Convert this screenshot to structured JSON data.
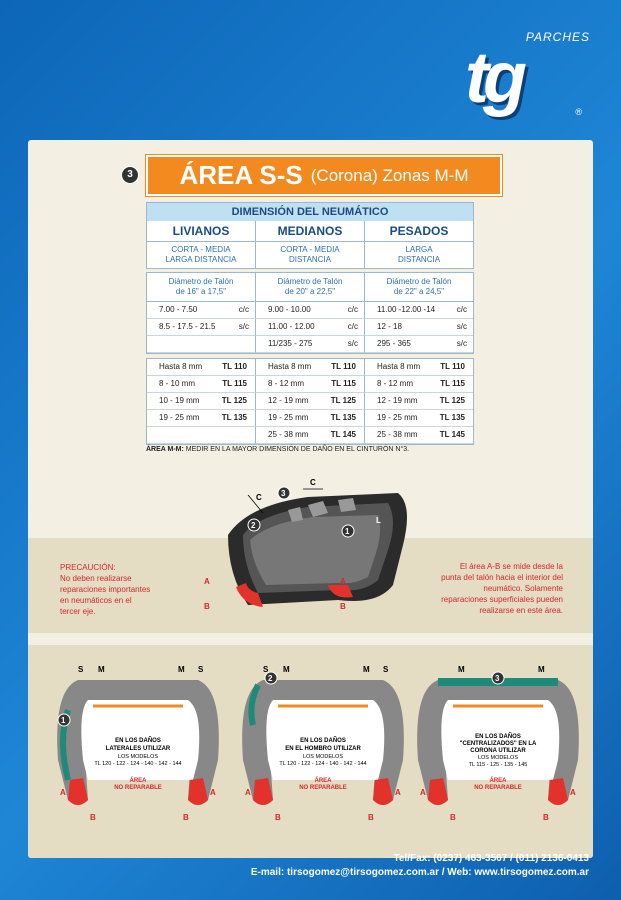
{
  "logo": {
    "top": "PARCHES",
    "mark": "tg",
    "registered": "®"
  },
  "section": {
    "number": "3",
    "title": "ÁREA S-S",
    "subtitle": "(Corona) Zonas M-M"
  },
  "table": {
    "header": "DIMENSIÓN DEL NEUMÁTICO",
    "categories": [
      "LIVIANOS",
      "MEDIANOS",
      "PESADOS"
    ],
    "distance": [
      [
        "CORTA - MEDIA",
        "LARGA DISTANCIA"
      ],
      [
        "CORTA - MEDIA",
        "DISTANCIA"
      ],
      [
        "LARGA",
        "DISTANCIA"
      ]
    ],
    "bead": [
      [
        "Diámetro de Talón",
        "de 16\" a 17,5\""
      ],
      [
        "Diámetro de Talón",
        "de 20\" a 22,5\""
      ],
      [
        "Diámetro de Talón",
        "de 22\" a 24,5\""
      ]
    ],
    "sizes": [
      [
        [
          "7.00 - 7.50",
          "c/c"
        ],
        [
          "9.00 - 10.00",
          "c/c"
        ],
        [
          "11.00 -12.00 -14",
          "c/c"
        ]
      ],
      [
        [
          "8.5 - 17.5 - 21.5",
          "s/c"
        ],
        [
          "11.00 - 12.00",
          "c/c"
        ],
        [
          "12 - 18",
          "s/c"
        ]
      ],
      [
        [
          "",
          ""
        ],
        [
          "11/235 - 275",
          "s/c"
        ],
        [
          "295 - 365",
          "s/c"
        ]
      ]
    ],
    "patches": [
      [
        [
          "Hasta 8 mm",
          "TL 110"
        ],
        [
          "Hasta 8 mm",
          "TL 110"
        ],
        [
          "Hasta 8 mm",
          "TL 110"
        ]
      ],
      [
        [
          "8 - 10 mm",
          "TL 115"
        ],
        [
          "8 - 12 mm",
          "TL 115"
        ],
        [
          "8 - 12 mm",
          "TL 115"
        ]
      ],
      [
        [
          "10 - 19 mm",
          "TL 125"
        ],
        [
          "12 - 19 mm",
          "TL 125"
        ],
        [
          "12 - 19 mm",
          "TL 125"
        ]
      ],
      [
        [
          "19 - 25 mm",
          "TL 135"
        ],
        [
          "19 - 25 mm",
          "TL 135"
        ],
        [
          "19 - 25 mm",
          "TL 135"
        ]
      ],
      [
        [
          "",
          ""
        ],
        [
          "25 - 38 mm",
          "TL 145"
        ],
        [
          "25 - 38 mm",
          "TL 145"
        ]
      ]
    ]
  },
  "note": {
    "label": "ÁREA M-M:",
    "text": " MEDIR EN LA MAYOR DIMENSIÓN DE DAÑO EN EL CINTURÓN N°3."
  },
  "caution": {
    "lines": [
      "PRECAUCIÓN:",
      "No deben realizarse",
      "reparaciones importantes",
      "en neumáticos en el",
      "tercer eje."
    ]
  },
  "info": {
    "lines": [
      "El área A-B se mide desde la",
      "punta del talón hacia el interior del",
      "neumático. Solamente",
      "reparaciones superficiales pueden",
      "realizarse en este área."
    ]
  },
  "diagram_labels": {
    "C": "C",
    "A": "A",
    "B": "B",
    "L": "L",
    "S": "S",
    "M": "M",
    "n1": "1",
    "n2": "2",
    "n3": "3"
  },
  "sections": [
    {
      "lines": [
        "EN LOS DAÑOS",
        "LATERALES UTILIZAR"
      ],
      "models": "LOS MODELOS",
      "list": "TL 120 - 122 - 124 - 140 - 142 - 144",
      "top": [
        "S",
        "M",
        "M",
        "S"
      ],
      "badge": "1"
    },
    {
      "lines": [
        "EN LOS DAÑOS",
        "EN EL HOMBRO UTILIZAR"
      ],
      "models": "LOS MODELOS",
      "list": "TL 120 - 122 - 124 - 140 - 142 - 144",
      "top": [
        "S",
        "M",
        "M",
        "S"
      ],
      "badge": "2"
    },
    {
      "lines": [
        "EN LOS DAÑOS",
        "\"CENTRALIZADOS\" EN LA",
        "CORONA UTILIZAR"
      ],
      "models": "LOS MODELOS",
      "list": "TL 115 - 125 - 135 - 145",
      "top": [
        "M",
        "M"
      ],
      "badge": "3"
    }
  ],
  "area_label": [
    "ÁREA",
    "NO REPARABLE"
  ],
  "footer": {
    "phone": "Tel/Fax: (0237) 463-3567 / (011) 2136-0413",
    "web": "E-mail: tirsogomez@tirsogomez.com.ar / Web: www.tirsogomez.com.ar"
  },
  "colors": {
    "orange": "#f28a1f",
    "blue": "#1b4b85",
    "light_blue": "#bfe0f2",
    "red": "#d3282e",
    "panel": "#f3f0e3"
  }
}
